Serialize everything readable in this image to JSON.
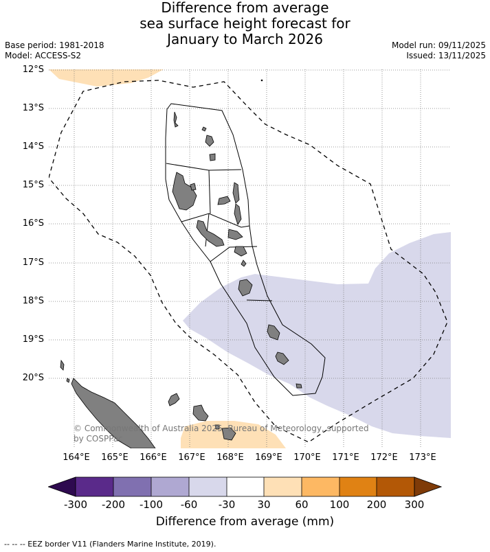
{
  "title": {
    "line1": "Difference from average",
    "line2": "sea surface height forecast for",
    "line3": "January to March 2026"
  },
  "meta": {
    "base_period": "Base period: 1981-2018",
    "model": "Model: ACCESS-S2",
    "model_run": "Model run: 09/11/2025",
    "issued": "Issued: 13/11/2025"
  },
  "axes": {
    "lat_labels": [
      "12°S",
      "13°S",
      "14°S",
      "15°S",
      "16°S",
      "17°S",
      "18°S",
      "19°S",
      "20°S"
    ],
    "lon_labels": [
      "164°E",
      "165°E",
      "166°E",
      "167°E",
      "168°E",
      "169°E",
      "170°E",
      "171°E",
      "172°E",
      "173°E"
    ]
  },
  "colorbar": {
    "labels": [
      "-300",
      "-200",
      "-100",
      "-60",
      "-30",
      "30",
      "60",
      "100",
      "200",
      "300"
    ],
    "colors": [
      "#2e0a4f",
      "#5a2a8a",
      "#8070b0",
      "#afa8d2",
      "#d8d8eb",
      "#ffffff",
      "#fee0b6",
      "#fdb863",
      "#e08214",
      "#b35806",
      "#7f3b08"
    ],
    "title": "Difference from average (mm)"
  },
  "credit": {
    "line1": "© Commonwealth of Australia 2025, Bureau of Meteorology, supported",
    "line2": "by COSPPac"
  },
  "footnote": "--  --  -- EEZ border V11 (Flanders Marine Institute, 2019).",
  "map": {
    "land_color": "#808080",
    "anomaly_negative_color": "#d8d8eb",
    "anomaly_positive_color": "#fee0b6"
  }
}
